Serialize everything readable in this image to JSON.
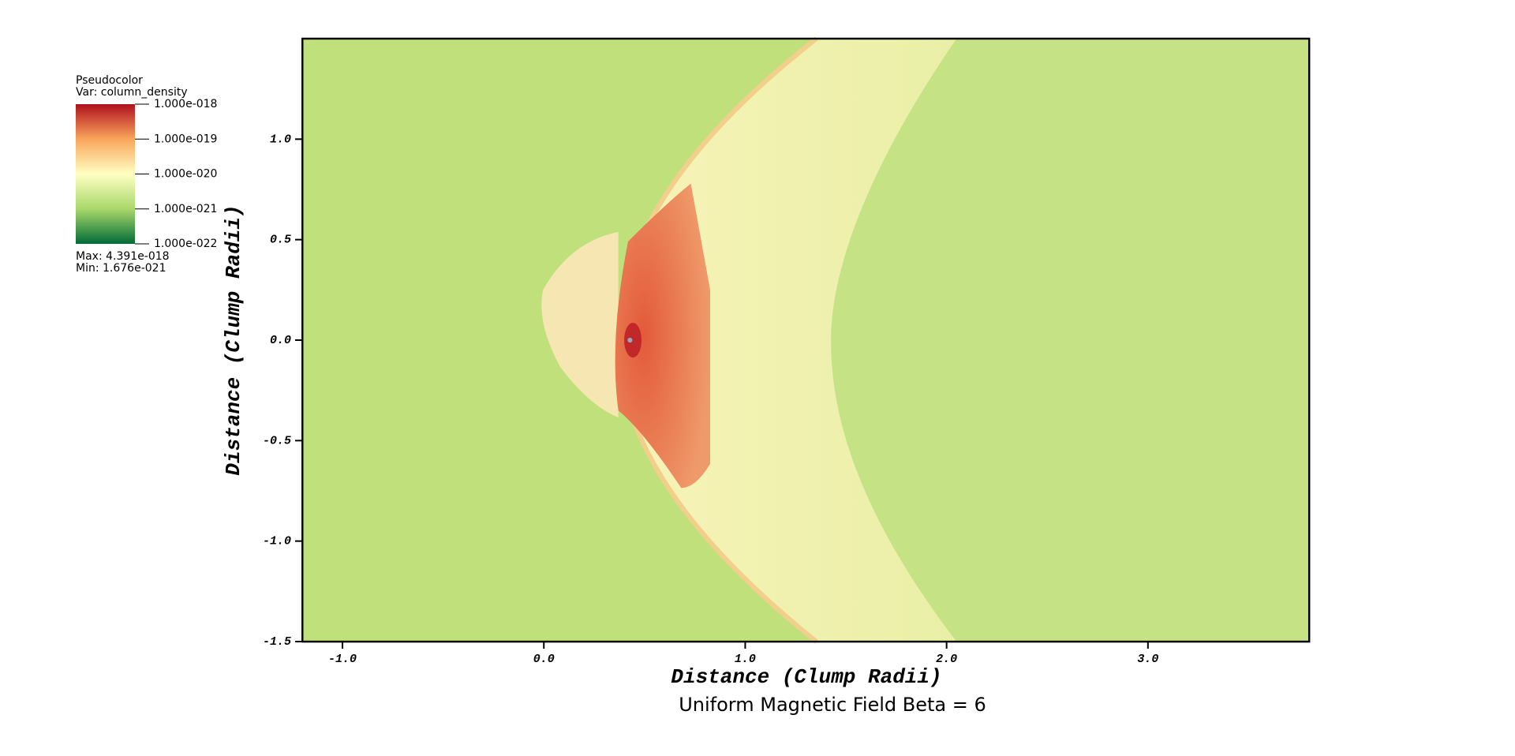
{
  "chart_data": {
    "type": "pseudocolor",
    "title": "Uniform Magnetic Field Beta = 6",
    "x_label": "Distance (Clump Radii)",
    "y_label": "Distance (Clump Radii)",
    "xlim": [
      -1.2,
      3.8
    ],
    "ylim": [
      -1.5,
      1.5
    ],
    "xticks": [
      {
        "value": -1,
        "label": "-1.0"
      },
      {
        "value": 0,
        "label": "0.0"
      },
      {
        "value": 1,
        "label": "1.0"
      },
      {
        "value": 2,
        "label": "2.0"
      },
      {
        "value": 3,
        "label": "3.0"
      }
    ],
    "yticks": [
      -1.5,
      {
        "value": -1,
        "label": "-1.0"
      },
      -0.5,
      {
        "value": 0,
        "label": "0.0"
      },
      0.5,
      {
        "value": 1,
        "label": "1.0"
      }
    ],
    "legend": {
      "title": "Pseudocolor",
      "variable": "Var: column_density",
      "scale": "log",
      "lim": [
        1e-22,
        1e-18
      ],
      "ticks": [
        {
          "value": 1e-18,
          "label": "1.000e-018"
        },
        {
          "value": 1e-19,
          "label": "1.000e-019"
        },
        {
          "value": 1e-20,
          "label": "1.000e-020"
        },
        {
          "value": 1e-21,
          "label": "1.000e-021"
        },
        {
          "value": 1e-22,
          "label": "1.000e-022"
        }
      ],
      "colors": [
        "#006b37",
        "#a9d86b",
        "#ffffc2",
        "#f9a55c",
        "#b0101e"
      ],
      "max": "Max:  4.391e-018",
      "min": "Min:  1.676e-021"
    }
  }
}
